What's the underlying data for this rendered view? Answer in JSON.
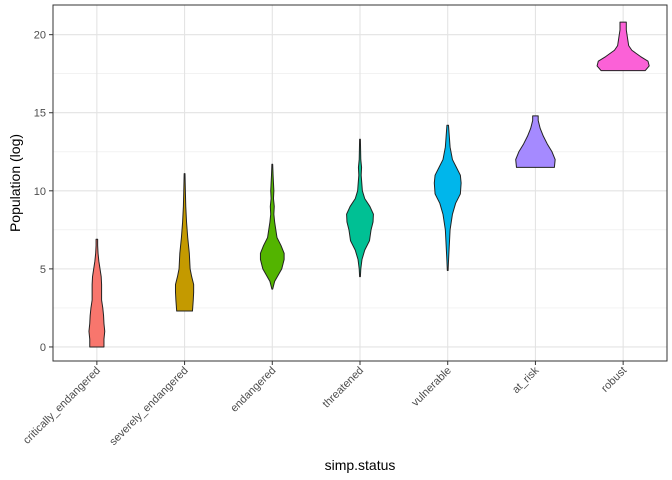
{
  "chart_data": {
    "type": "violin",
    "title": "",
    "xlabel": "simp.status",
    "ylabel": "Population (log)",
    "ylim": [
      -0.9,
      21.9
    ],
    "yticks": [
      0,
      5,
      10,
      15,
      20
    ],
    "grid": true,
    "categories": [
      "critically_endangered",
      "severely_endangered",
      "endangered",
      "threatened",
      "vulnerable",
      "at_risk",
      "robust"
    ],
    "colors": [
      "#F8766D",
      "#C49A00",
      "#53B400",
      "#00C094",
      "#00B6EB",
      "#A58AFF",
      "#FB61D7"
    ],
    "violins": [
      {
        "name": "critically_endangered",
        "min": 0,
        "max": 6.9,
        "profile": [
          [
            0,
            0.18
          ],
          [
            0.5,
            0.18
          ],
          [
            1.0,
            0.2
          ],
          [
            1.5,
            0.18
          ],
          [
            2.0,
            0.17
          ],
          [
            2.5,
            0.15
          ],
          [
            3.0,
            0.12
          ],
          [
            3.5,
            0.12
          ],
          [
            4.0,
            0.12
          ],
          [
            4.5,
            0.11
          ],
          [
            5.0,
            0.08
          ],
          [
            5.5,
            0.05
          ],
          [
            6.0,
            0.03
          ],
          [
            6.5,
            0.02
          ],
          [
            6.9,
            0.02
          ]
        ]
      },
      {
        "name": "severely_endangered",
        "min": 2.3,
        "max": 11.1,
        "profile": [
          [
            2.3,
            0.2
          ],
          [
            3.0,
            0.22
          ],
          [
            3.5,
            0.23
          ],
          [
            4.0,
            0.23
          ],
          [
            4.5,
            0.18
          ],
          [
            5.0,
            0.14
          ],
          [
            6.0,
            0.12
          ],
          [
            7.0,
            0.08
          ],
          [
            8.0,
            0.05
          ],
          [
            9.0,
            0.03
          ],
          [
            10.0,
            0.02
          ],
          [
            11.1,
            0.01
          ]
        ]
      },
      {
        "name": "endangered",
        "min": 3.7,
        "max": 11.7,
        "profile": [
          [
            3.7,
            0.01
          ],
          [
            4.2,
            0.06
          ],
          [
            5.0,
            0.24
          ],
          [
            5.6,
            0.3
          ],
          [
            6.0,
            0.3
          ],
          [
            6.5,
            0.22
          ],
          [
            7.0,
            0.12
          ],
          [
            8.0,
            0.06
          ],
          [
            8.5,
            0.04
          ],
          [
            9.0,
            0.05
          ],
          [
            9.5,
            0.03
          ],
          [
            10.0,
            0.04
          ],
          [
            10.5,
            0.03
          ],
          [
            11.0,
            0.02
          ],
          [
            11.7,
            0.01
          ]
        ]
      },
      {
        "name": "threatened",
        "min": 4.5,
        "max": 13.3,
        "profile": [
          [
            4.5,
            0.01
          ],
          [
            5.0,
            0.02
          ],
          [
            5.6,
            0.05
          ],
          [
            6.2,
            0.12
          ],
          [
            6.8,
            0.24
          ],
          [
            7.5,
            0.28
          ],
          [
            8.0,
            0.33
          ],
          [
            8.5,
            0.34
          ],
          [
            9.0,
            0.25
          ],
          [
            9.5,
            0.12
          ],
          [
            10.0,
            0.06
          ],
          [
            11.0,
            0.03
          ],
          [
            11.5,
            0.04
          ],
          [
            12.0,
            0.02
          ],
          [
            13.3,
            0.01
          ]
        ]
      },
      {
        "name": "vulnerable",
        "min": 4.9,
        "max": 14.2,
        "profile": [
          [
            4.9,
            0.01
          ],
          [
            5.5,
            0.02
          ],
          [
            6.5,
            0.04
          ],
          [
            7.5,
            0.06
          ],
          [
            8.5,
            0.12
          ],
          [
            9.2,
            0.2
          ],
          [
            9.8,
            0.32
          ],
          [
            10.5,
            0.34
          ],
          [
            11.0,
            0.32
          ],
          [
            11.5,
            0.22
          ],
          [
            12.0,
            0.12
          ],
          [
            12.8,
            0.06
          ],
          [
            13.5,
            0.04
          ],
          [
            14.2,
            0.02
          ]
        ]
      },
      {
        "name": "at_risk",
        "min": 11.5,
        "max": 14.8,
        "profile": [
          [
            11.5,
            0.48
          ],
          [
            12.0,
            0.5
          ],
          [
            12.5,
            0.42
          ],
          [
            13.0,
            0.3
          ],
          [
            13.5,
            0.2
          ],
          [
            14.0,
            0.12
          ],
          [
            14.5,
            0.07
          ],
          [
            14.8,
            0.07
          ]
        ]
      },
      {
        "name": "robust",
        "min": 17.7,
        "max": 20.8,
        "profile": [
          [
            17.7,
            0.56
          ],
          [
            18.0,
            0.66
          ],
          [
            18.3,
            0.63
          ],
          [
            18.6,
            0.44
          ],
          [
            19.0,
            0.22
          ],
          [
            19.3,
            0.14
          ],
          [
            19.8,
            0.11
          ],
          [
            20.3,
            0.08
          ],
          [
            20.8,
            0.08
          ]
        ]
      }
    ]
  }
}
